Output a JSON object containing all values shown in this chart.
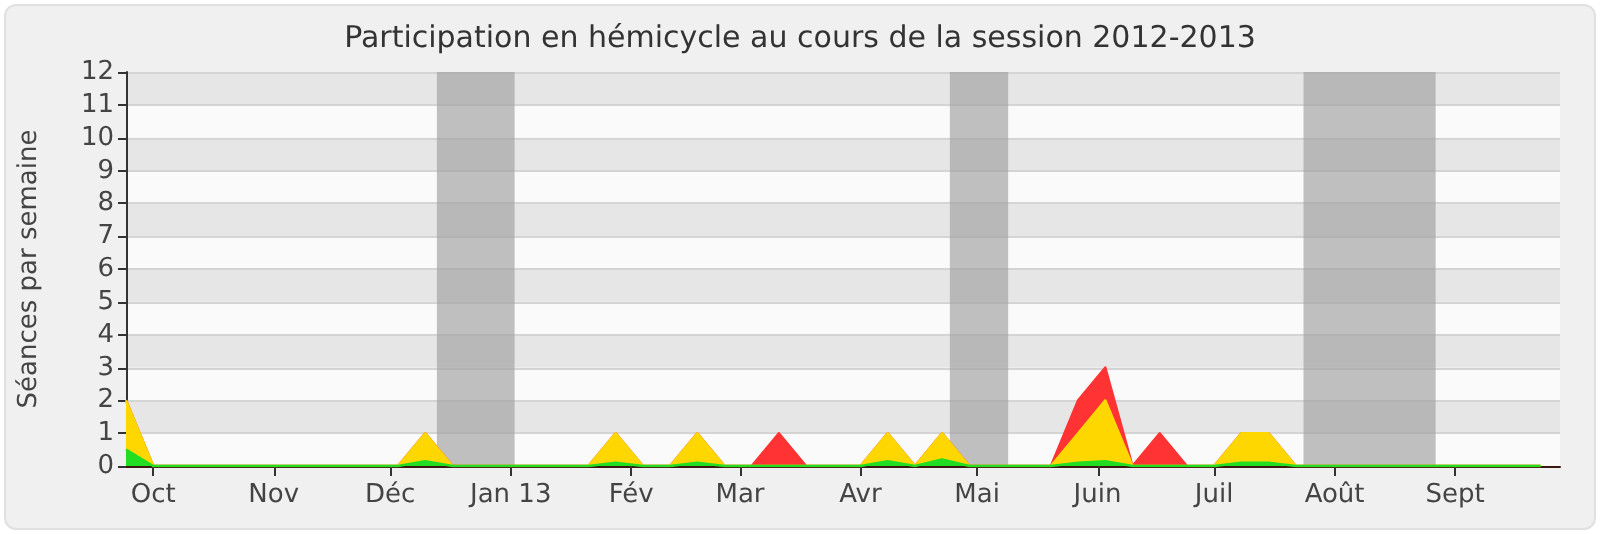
{
  "chart_data": {
    "type": "area",
    "stacked": true,
    "title": "Participation en hémicycle au cours de la session 2012-2013",
    "ylabel": "Séances par semaine",
    "x": [
      "2012-09-24",
      "2012-10-01",
      "2012-10-08",
      "2012-10-15",
      "2012-10-22",
      "2012-10-29",
      "2012-11-05",
      "2012-11-12",
      "2012-11-19",
      "2012-11-26",
      "2012-12-03",
      "2012-12-10",
      "2012-12-17",
      "2012-12-24",
      "2012-12-31",
      "2013-01-07",
      "2013-01-14",
      "2013-01-21",
      "2013-01-28",
      "2013-02-04",
      "2013-02-11",
      "2013-02-18",
      "2013-02-25",
      "2013-03-04",
      "2013-03-11",
      "2013-03-18",
      "2013-03-25",
      "2013-04-01",
      "2013-04-08",
      "2013-04-15",
      "2013-04-22",
      "2013-04-29",
      "2013-05-06",
      "2013-05-13",
      "2013-05-20",
      "2013-05-27",
      "2013-06-03",
      "2013-06-10",
      "2013-06-17",
      "2013-06-24",
      "2013-07-01",
      "2013-07-08",
      "2013-07-15",
      "2013-07-22",
      "2013-07-29",
      "2013-08-05",
      "2013-08-12",
      "2013-08-19",
      "2013-08-26",
      "2013-09-02",
      "2013-09-09",
      "2013-09-16",
      "2013-09-23"
    ],
    "series": [
      {
        "color": "#22dd22",
        "values": [
          0.5,
          0,
          0,
          0,
          0,
          0,
          0,
          0,
          0,
          0,
          0,
          0.15,
          0,
          0,
          0,
          0,
          0,
          0,
          0.1,
          0,
          0,
          0.1,
          0,
          0,
          0,
          0,
          0,
          0,
          0.15,
          0,
          0.2,
          0,
          0,
          0,
          0,
          0.1,
          0.15,
          0,
          0,
          0,
          0,
          0.1,
          0.1,
          0,
          0,
          0,
          0,
          0,
          0,
          0,
          0,
          0,
          0
        ]
      },
      {
        "color": "#ffd700",
        "values": [
          1.5,
          0,
          0,
          0,
          0,
          0,
          0,
          0,
          0,
          0,
          0,
          0.85,
          0,
          0,
          0,
          0,
          0,
          0,
          0.9,
          0,
          0,
          0.9,
          0,
          0,
          0,
          0,
          0,
          0,
          0.85,
          0,
          0.8,
          0,
          0,
          0,
          0,
          0.9,
          1.85,
          0,
          0,
          0,
          0,
          0.9,
          0.9,
          0,
          0,
          0,
          0,
          0,
          0,
          0,
          0,
          0,
          0
        ]
      },
      {
        "color": "#ff3333",
        "values": [
          0,
          0,
          0,
          0,
          0,
          0,
          0,
          0,
          0,
          0,
          0,
          0,
          0,
          0,
          0,
          0,
          0,
          0,
          0,
          0,
          0,
          0,
          0,
          0,
          1,
          0,
          0,
          0,
          0,
          0,
          0,
          0,
          0,
          0,
          0,
          1,
          1,
          0,
          1,
          0,
          0,
          0,
          0,
          0,
          0,
          0,
          0,
          0,
          0,
          0,
          0,
          0,
          0
        ]
      }
    ],
    "xlim": [
      "2012-09-24",
      "2013-09-28"
    ],
    "xticks": [
      {
        "value": "2012-10-01",
        "label": "Oct"
      },
      {
        "value": "2012-11-01",
        "label": "Nov"
      },
      {
        "value": "2012-12-01",
        "label": "Déc"
      },
      {
        "value": "2013-01-01",
        "label": "Jan 13"
      },
      {
        "value": "2013-02-01",
        "label": "Fév"
      },
      {
        "value": "2013-03-01",
        "label": "Mar"
      },
      {
        "value": "2013-04-01",
        "label": "Avr"
      },
      {
        "value": "2013-05-01",
        "label": "Mai"
      },
      {
        "value": "2013-06-01",
        "label": "Juin"
      },
      {
        "value": "2013-07-01",
        "label": "Juil"
      },
      {
        "value": "2013-08-01",
        "label": "Août"
      },
      {
        "value": "2013-09-01",
        "label": "Sept"
      }
    ],
    "ylim": [
      0,
      12
    ],
    "yticks": [
      0,
      1,
      2,
      3,
      4,
      5,
      6,
      7,
      8,
      9,
      10,
      11,
      12
    ],
    "grid": "y",
    "bands": [
      {
        "axis": "x",
        "from": "2012-12-13",
        "to": "2013-01-02",
        "color": "#a0a0a0"
      },
      {
        "axis": "x",
        "from": "2013-04-24",
        "to": "2013-05-09",
        "color": "#a0a0a0"
      },
      {
        "axis": "x",
        "from": "2013-07-24",
        "to": "2013-08-27",
        "color": "#a0a0a0"
      }
    ]
  }
}
